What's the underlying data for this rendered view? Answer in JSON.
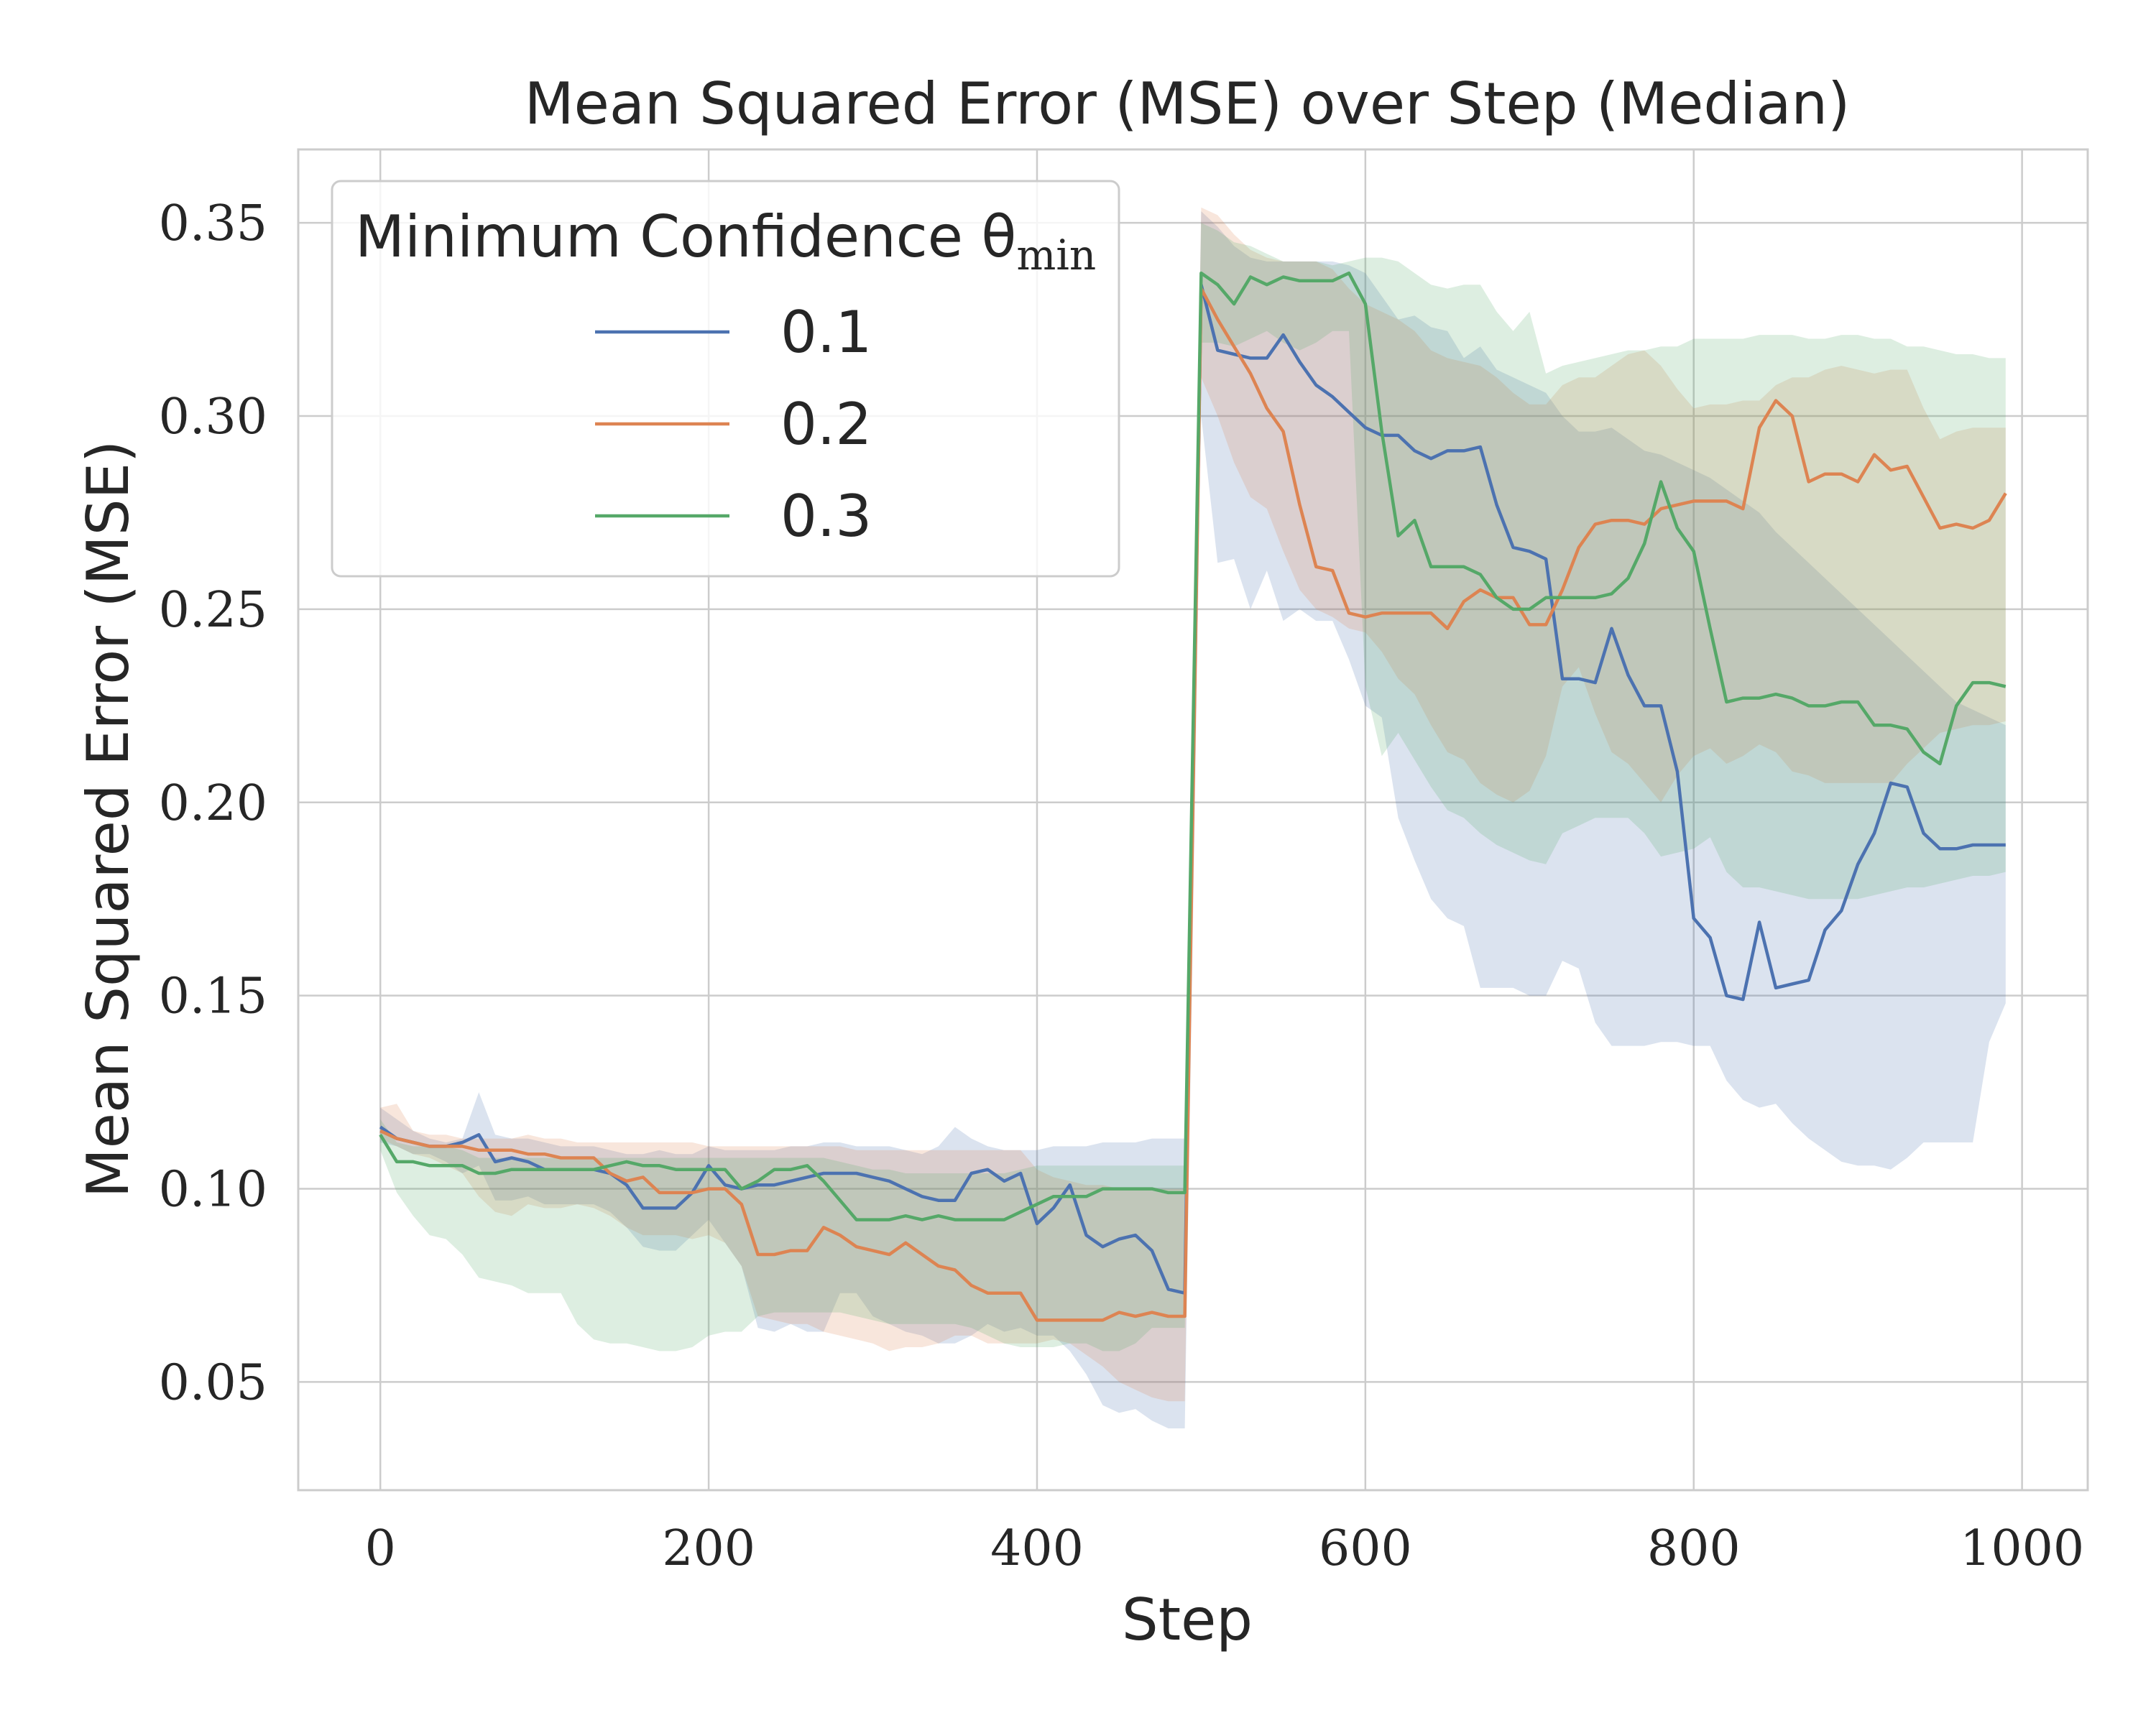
{
  "chart_data": {
    "type": "line",
    "title": "Mean Squared Error (MSE) over Step (Median)",
    "xlabel": "Step",
    "ylabel": "Mean Squared Error (MSE)",
    "xlim": [
      -50,
      1040
    ],
    "ylim": [
      0.022,
      0.369
    ],
    "xticks": [
      0,
      200,
      400,
      600,
      800,
      1000
    ],
    "xtick_labels": [
      "0",
      "200",
      "400",
      "600",
      "800",
      "1000"
    ],
    "yticks": [
      0.05,
      0.1,
      0.15,
      0.2,
      0.25,
      0.3,
      0.35
    ],
    "ytick_labels": [
      "0.05",
      "0.10",
      "0.15",
      "0.20",
      "0.25",
      "0.30",
      "0.35"
    ],
    "grid": true,
    "legend": {
      "title": "Minimum Confidence θ",
      "title_subscript": "min",
      "position": "top-left"
    },
    "x": [
      0,
      10,
      20,
      30,
      40,
      50,
      60,
      70,
      80,
      90,
      100,
      110,
      120,
      130,
      140,
      150,
      160,
      170,
      180,
      190,
      200,
      210,
      220,
      230,
      240,
      250,
      260,
      270,
      280,
      290,
      300,
      310,
      320,
      330,
      340,
      350,
      360,
      370,
      380,
      390,
      400,
      410,
      420,
      430,
      440,
      450,
      460,
      470,
      480,
      490,
      500,
      510,
      520,
      530,
      540,
      550,
      560,
      570,
      580,
      590,
      600,
      610,
      620,
      630,
      640,
      650,
      660,
      670,
      680,
      690,
      700,
      710,
      720,
      730,
      740,
      750,
      760,
      770,
      780,
      790,
      800,
      810,
      820,
      830,
      840,
      850,
      860,
      870,
      880,
      890,
      900,
      910,
      920,
      930,
      940,
      950,
      960,
      970,
      980,
      990
    ],
    "series": [
      {
        "name": "0.1",
        "color": "#4c72b0",
        "values": [
          0.116,
          0.113,
          0.112,
          0.111,
          0.111,
          0.112,
          0.114,
          0.107,
          0.108,
          0.107,
          0.105,
          0.105,
          0.105,
          0.105,
          0.104,
          0.101,
          0.095,
          0.095,
          0.095,
          0.099,
          0.106,
          0.101,
          0.1,
          0.101,
          0.101,
          0.102,
          0.103,
          0.104,
          0.104,
          0.104,
          0.103,
          0.102,
          0.1,
          0.098,
          0.097,
          0.097,
          0.104,
          0.105,
          0.102,
          0.104,
          0.091,
          0.095,
          0.101,
          0.088,
          0.085,
          0.087,
          0.088,
          0.084,
          0.074,
          0.073,
          0.334,
          0.317,
          0.316,
          0.315,
          0.315,
          0.321,
          0.314,
          0.308,
          0.305,
          0.301,
          0.297,
          0.295,
          0.295,
          0.291,
          0.289,
          0.291,
          0.291,
          0.292,
          0.277,
          0.266,
          0.265,
          0.263,
          0.232,
          0.232,
          0.231,
          0.245,
          0.233,
          0.225,
          0.225,
          0.208,
          0.17,
          0.165,
          0.15,
          0.149,
          0.169,
          0.152,
          0.153,
          0.154,
          0.167,
          0.172,
          0.184,
          0.192,
          0.205,
          0.204,
          0.192,
          0.188,
          0.188,
          0.189,
          0.189,
          0.189
        ],
        "lower": [
          0.112,
          0.111,
          0.109,
          0.109,
          0.107,
          0.104,
          0.106,
          0.097,
          0.097,
          0.098,
          0.096,
          0.096,
          0.096,
          0.096,
          0.094,
          0.09,
          0.085,
          0.084,
          0.084,
          0.088,
          0.092,
          0.086,
          0.08,
          0.064,
          0.063,
          0.065,
          0.063,
          0.063,
          0.073,
          0.073,
          0.067,
          0.065,
          0.063,
          0.062,
          0.06,
          0.06,
          0.062,
          0.065,
          0.063,
          0.064,
          0.062,
          0.062,
          0.058,
          0.052,
          0.044,
          0.042,
          0.043,
          0.04,
          0.038,
          0.038,
          0.3,
          0.262,
          0.263,
          0.25,
          0.26,
          0.247,
          0.25,
          0.247,
          0.247,
          0.237,
          0.225,
          0.222,
          0.196,
          0.185,
          0.175,
          0.17,
          0.168,
          0.152,
          0.152,
          0.152,
          0.15,
          0.15,
          0.159,
          0.157,
          0.143,
          0.137,
          0.137,
          0.137,
          0.138,
          0.138,
          0.137,
          0.137,
          0.128,
          0.123,
          0.121,
          0.122,
          0.117,
          0.113,
          0.11,
          0.107,
          0.106,
          0.106,
          0.105,
          0.108,
          0.112,
          0.112,
          0.112,
          0.112,
          0.138,
          0.148
        ],
        "upper": [
          0.121,
          0.118,
          0.115,
          0.113,
          0.112,
          0.113,
          0.125,
          0.114,
          0.113,
          0.113,
          0.112,
          0.111,
          0.111,
          0.111,
          0.11,
          0.109,
          0.109,
          0.11,
          0.109,
          0.109,
          0.111,
          0.11,
          0.11,
          0.11,
          0.11,
          0.111,
          0.111,
          0.112,
          0.112,
          0.111,
          0.111,
          0.111,
          0.11,
          0.109,
          0.111,
          0.116,
          0.113,
          0.111,
          0.11,
          0.11,
          0.11,
          0.111,
          0.111,
          0.111,
          0.112,
          0.112,
          0.112,
          0.113,
          0.113,
          0.113,
          0.353,
          0.349,
          0.344,
          0.341,
          0.34,
          0.34,
          0.34,
          0.34,
          0.34,
          0.339,
          0.337,
          0.331,
          0.325,
          0.326,
          0.323,
          0.322,
          0.315,
          0.318,
          0.312,
          0.31,
          0.308,
          0.306,
          0.3,
          0.296,
          0.296,
          0.297,
          0.294,
          0.291,
          0.29,
          0.288,
          0.286,
          0.284,
          0.281,
          0.278,
          0.275,
          0.27,
          0.266,
          0.262,
          0.258,
          0.254,
          0.25,
          0.246,
          0.242,
          0.238,
          0.234,
          0.23,
          0.226,
          0.224,
          0.222,
          0.22
        ]
      },
      {
        "name": "0.2",
        "color": "#dd8452",
        "values": [
          0.115,
          0.113,
          0.112,
          0.111,
          0.111,
          0.111,
          0.11,
          0.11,
          0.11,
          0.109,
          0.109,
          0.108,
          0.108,
          0.108,
          0.104,
          0.102,
          0.103,
          0.099,
          0.099,
          0.099,
          0.1,
          0.1,
          0.096,
          0.083,
          0.083,
          0.084,
          0.084,
          0.09,
          0.088,
          0.085,
          0.084,
          0.083,
          0.086,
          0.083,
          0.08,
          0.079,
          0.075,
          0.073,
          0.073,
          0.073,
          0.066,
          0.066,
          0.066,
          0.066,
          0.066,
          0.068,
          0.067,
          0.068,
          0.067,
          0.067,
          0.333,
          0.325,
          0.318,
          0.311,
          0.302,
          0.296,
          0.277,
          0.261,
          0.26,
          0.249,
          0.248,
          0.249,
          0.249,
          0.249,
          0.249,
          0.245,
          0.252,
          0.255,
          0.253,
          0.253,
          0.246,
          0.246,
          0.255,
          0.266,
          0.272,
          0.273,
          0.273,
          0.272,
          0.276,
          0.277,
          0.278,
          0.278,
          0.278,
          0.276,
          0.297,
          0.304,
          0.3,
          0.283,
          0.285,
          0.285,
          0.283,
          0.29,
          0.286,
          0.287,
          0.279,
          0.271,
          0.272,
          0.271,
          0.273,
          0.28
        ],
        "lower": [
          0.113,
          0.111,
          0.109,
          0.108,
          0.106,
          0.104,
          0.098,
          0.094,
          0.093,
          0.096,
          0.095,
          0.095,
          0.096,
          0.095,
          0.093,
          0.09,
          0.088,
          0.088,
          0.088,
          0.087,
          0.088,
          0.086,
          0.08,
          0.067,
          0.066,
          0.065,
          0.065,
          0.063,
          0.062,
          0.061,
          0.06,
          0.058,
          0.059,
          0.059,
          0.06,
          0.062,
          0.062,
          0.06,
          0.06,
          0.06,
          0.06,
          0.061,
          0.06,
          0.057,
          0.054,
          0.05,
          0.048,
          0.046,
          0.045,
          0.045,
          0.31,
          0.3,
          0.288,
          0.279,
          0.276,
          0.265,
          0.255,
          0.25,
          0.248,
          0.245,
          0.244,
          0.239,
          0.232,
          0.228,
          0.22,
          0.213,
          0.211,
          0.205,
          0.202,
          0.2,
          0.203,
          0.212,
          0.23,
          0.235,
          0.223,
          0.213,
          0.21,
          0.205,
          0.2,
          0.207,
          0.212,
          0.214,
          0.21,
          0.212,
          0.215,
          0.213,
          0.208,
          0.207,
          0.205,
          0.205,
          0.205,
          0.205,
          0.205,
          0.21,
          0.214,
          0.218,
          0.219,
          0.22,
          0.22,
          0.221
        ],
        "upper": [
          0.121,
          0.122,
          0.115,
          0.114,
          0.114,
          0.113,
          0.113,
          0.113,
          0.113,
          0.114,
          0.113,
          0.113,
          0.112,
          0.112,
          0.112,
          0.112,
          0.112,
          0.112,
          0.112,
          0.112,
          0.111,
          0.111,
          0.111,
          0.111,
          0.111,
          0.111,
          0.111,
          0.111,
          0.111,
          0.11,
          0.11,
          0.11,
          0.11,
          0.11,
          0.11,
          0.11,
          0.11,
          0.11,
          0.11,
          0.11,
          0.105,
          0.103,
          0.102,
          0.101,
          0.101,
          0.1,
          0.1,
          0.1,
          0.1,
          0.1,
          0.354,
          0.352,
          0.347,
          0.343,
          0.341,
          0.34,
          0.34,
          0.34,
          0.338,
          0.333,
          0.329,
          0.327,
          0.325,
          0.322,
          0.317,
          0.315,
          0.314,
          0.313,
          0.31,
          0.306,
          0.303,
          0.303,
          0.308,
          0.31,
          0.31,
          0.313,
          0.316,
          0.317,
          0.313,
          0.307,
          0.302,
          0.303,
          0.303,
          0.304,
          0.304,
          0.308,
          0.31,
          0.31,
          0.312,
          0.313,
          0.312,
          0.311,
          0.312,
          0.312,
          0.302,
          0.294,
          0.296,
          0.297,
          0.297,
          0.297
        ]
      },
      {
        "name": "0.3",
        "color": "#55a868",
        "values": [
          0.114,
          0.107,
          0.107,
          0.106,
          0.106,
          0.106,
          0.104,
          0.104,
          0.105,
          0.105,
          0.105,
          0.105,
          0.105,
          0.105,
          0.106,
          0.107,
          0.106,
          0.106,
          0.105,
          0.105,
          0.105,
          0.105,
          0.1,
          0.102,
          0.105,
          0.105,
          0.106,
          0.102,
          0.097,
          0.092,
          0.092,
          0.092,
          0.093,
          0.092,
          0.093,
          0.092,
          0.092,
          0.092,
          0.092,
          0.094,
          0.096,
          0.098,
          0.098,
          0.098,
          0.1,
          0.1,
          0.1,
          0.1,
          0.099,
          0.099,
          0.337,
          0.334,
          0.329,
          0.336,
          0.334,
          0.336,
          0.335,
          0.335,
          0.335,
          0.337,
          0.329,
          0.296,
          0.269,
          0.273,
          0.261,
          0.261,
          0.261,
          0.259,
          0.253,
          0.25,
          0.25,
          0.253,
          0.253,
          0.253,
          0.253,
          0.254,
          0.258,
          0.267,
          0.283,
          0.271,
          0.265,
          0.245,
          0.226,
          0.227,
          0.227,
          0.228,
          0.227,
          0.225,
          0.225,
          0.226,
          0.226,
          0.22,
          0.22,
          0.219,
          0.213,
          0.21,
          0.225,
          0.231,
          0.231,
          0.23
        ],
        "lower": [
          0.11,
          0.099,
          0.093,
          0.088,
          0.087,
          0.083,
          0.077,
          0.076,
          0.075,
          0.073,
          0.073,
          0.073,
          0.065,
          0.061,
          0.06,
          0.06,
          0.059,
          0.058,
          0.058,
          0.059,
          0.062,
          0.063,
          0.063,
          0.067,
          0.068,
          0.068,
          0.068,
          0.068,
          0.068,
          0.067,
          0.066,
          0.065,
          0.065,
          0.065,
          0.065,
          0.065,
          0.064,
          0.062,
          0.06,
          0.059,
          0.059,
          0.059,
          0.06,
          0.06,
          0.058,
          0.058,
          0.06,
          0.064,
          0.064,
          0.064,
          0.319,
          0.319,
          0.318,
          0.32,
          0.322,
          0.319,
          0.317,
          0.319,
          0.322,
          0.322,
          0.23,
          0.212,
          0.218,
          0.211,
          0.204,
          0.198,
          0.196,
          0.192,
          0.189,
          0.187,
          0.185,
          0.184,
          0.192,
          0.194,
          0.196,
          0.196,
          0.196,
          0.192,
          0.186,
          0.187,
          0.188,
          0.191,
          0.182,
          0.178,
          0.178,
          0.177,
          0.176,
          0.175,
          0.175,
          0.175,
          0.175,
          0.176,
          0.177,
          0.178,
          0.178,
          0.179,
          0.18,
          0.181,
          0.181,
          0.182
        ],
        "upper": [
          0.118,
          0.112,
          0.111,
          0.111,
          0.111,
          0.11,
          0.108,
          0.108,
          0.108,
          0.108,
          0.108,
          0.108,
          0.108,
          0.108,
          0.108,
          0.108,
          0.108,
          0.108,
          0.108,
          0.108,
          0.108,
          0.108,
          0.108,
          0.108,
          0.108,
          0.108,
          0.108,
          0.108,
          0.107,
          0.106,
          0.105,
          0.105,
          0.104,
          0.104,
          0.104,
          0.104,
          0.104,
          0.104,
          0.104,
          0.105,
          0.106,
          0.106,
          0.106,
          0.106,
          0.106,
          0.106,
          0.106,
          0.106,
          0.106,
          0.106,
          0.35,
          0.348,
          0.345,
          0.344,
          0.342,
          0.34,
          0.34,
          0.34,
          0.339,
          0.34,
          0.341,
          0.341,
          0.34,
          0.337,
          0.334,
          0.333,
          0.334,
          0.334,
          0.327,
          0.322,
          0.327,
          0.311,
          0.313,
          0.314,
          0.315,
          0.316,
          0.317,
          0.317,
          0.318,
          0.318,
          0.32,
          0.32,
          0.32,
          0.32,
          0.321,
          0.321,
          0.321,
          0.32,
          0.32,
          0.321,
          0.321,
          0.32,
          0.32,
          0.318,
          0.318,
          0.317,
          0.316,
          0.316,
          0.315,
          0.315
        ]
      }
    ]
  }
}
